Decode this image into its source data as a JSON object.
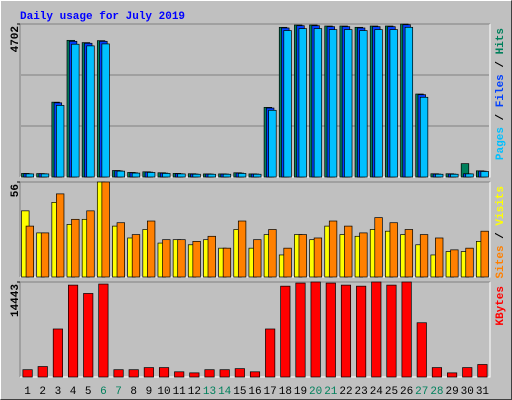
{
  "title": "Daily usage for July 2019",
  "legend_separator": " / ",
  "chart_data": [
    {
      "type": "bar",
      "ylim": [
        0,
        4702
      ],
      "yticks": [
        4702
      ],
      "series": [
        {
          "name": "Hits",
          "color": "#00805c",
          "values": [
            110,
            105,
            2300,
            4200,
            4130,
            4190,
            200,
            140,
            160,
            130,
            110,
            100,
            95,
            95,
            130,
            95,
            2140,
            4600,
            4670,
            4670,
            4640,
            4640,
            4600,
            4640,
            4640,
            4700,
            2550,
            100,
            100,
            410,
            190
          ]
        },
        {
          "name": "Files",
          "color": "#0040ff",
          "values": [
            100,
            100,
            2280,
            4170,
            4110,
            4170,
            190,
            130,
            150,
            120,
            100,
            90,
            90,
            90,
            120,
            90,
            2120,
            4580,
            4650,
            4650,
            4620,
            4620,
            4580,
            4620,
            4620,
            4680,
            2530,
            90,
            90,
            100,
            180
          ]
        },
        {
          "name": "Pages",
          "color": "#00c0ff",
          "values": [
            95,
            95,
            2200,
            4080,
            4030,
            4090,
            180,
            120,
            140,
            110,
            95,
            85,
            85,
            85,
            110,
            85,
            2050,
            4500,
            4560,
            4560,
            4530,
            4530,
            4500,
            4530,
            4530,
            4600,
            2450,
            85,
            85,
            95,
            170
          ]
        }
      ]
    },
    {
      "type": "bar",
      "ylim": [
        0,
        56
      ],
      "yticks": [
        56
      ],
      "series": [
        {
          "name": "Visits",
          "color": "#ffff00",
          "values": [
            39,
            26,
            44,
            31,
            34,
            56,
            30,
            23,
            28,
            20,
            22,
            19,
            22,
            17,
            28,
            17,
            25,
            13,
            25,
            22,
            30,
            25,
            24,
            28,
            27,
            25,
            19,
            13,
            15,
            15,
            21
          ]
        },
        {
          "name": "Sites",
          "color": "#ff8000",
          "values": [
            30,
            26,
            49,
            34,
            39,
            56,
            32,
            25,
            33,
            22,
            22,
            21,
            24,
            17,
            33,
            22,
            28,
            17,
            25,
            23,
            33,
            30,
            26,
            35,
            32,
            28,
            25,
            23,
            16,
            17,
            27
          ]
        }
      ]
    },
    {
      "type": "bar",
      "ylim": [
        0,
        14443
      ],
      "yticks": [
        14443
      ],
      "categories": [
        "1",
        "2",
        "3",
        "4",
        "5",
        "6",
        "7",
        "8",
        "9",
        "10",
        "11",
        "12",
        "13",
        "14",
        "15",
        "16",
        "17",
        "18",
        "19",
        "20",
        "21",
        "22",
        "23",
        "24",
        "25",
        "26",
        "27",
        "28",
        "29",
        "30",
        "31"
      ],
      "highlight_categories": [
        "6",
        "7",
        "13",
        "14",
        "20",
        "21",
        "27",
        "28"
      ],
      "highlight_color": "#00805c",
      "series": [
        {
          "name": "KBytes",
          "color": "#ff0000",
          "values": [
            1110,
            1590,
            7300,
            13970,
            12700,
            14130,
            1110,
            1110,
            1430,
            1430,
            790,
            630,
            1110,
            1110,
            1270,
            790,
            7300,
            13810,
            14280,
            14443,
            14280,
            13970,
            13810,
            14443,
            13970,
            14443,
            8250,
            1430,
            630,
            1430,
            1900
          ]
        }
      ]
    }
  ]
}
